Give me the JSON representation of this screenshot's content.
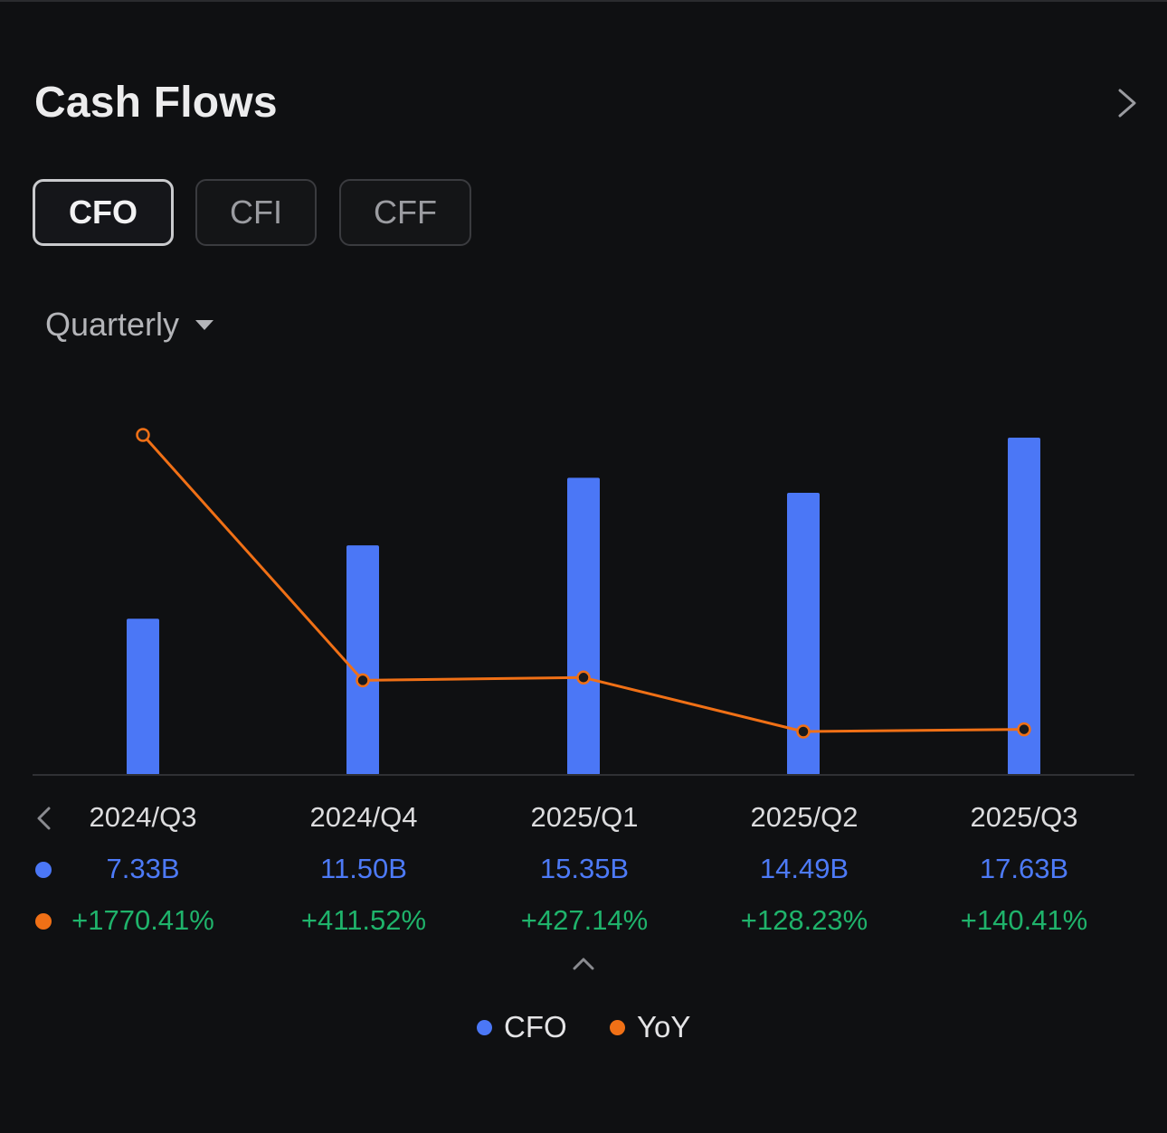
{
  "header": {
    "title": "Cash Flows",
    "more_icon": "chevron-right-icon"
  },
  "tabs": [
    {
      "label": "CFO",
      "active": true
    },
    {
      "label": "CFI",
      "active": false
    },
    {
      "label": "CFF",
      "active": false
    }
  ],
  "period_selector": {
    "label": "Quarterly",
    "icon": "caret-down-icon"
  },
  "colors": {
    "bar": "#4b77f6",
    "line": "#f07016",
    "positive": "#1fb36b",
    "value_text": "#4d7af7"
  },
  "chart_data": {
    "type": "bar",
    "categories": [
      "2024/Q3",
      "2024/Q4",
      "2025/Q1",
      "2025/Q2",
      "2025/Q3"
    ],
    "series": [
      {
        "name": "CFO",
        "type": "bar",
        "values": [
          7.33,
          11.5,
          15.35,
          14.49,
          17.63
        ],
        "unit": "B",
        "labels": [
          "7.33B",
          "11.50B",
          "15.35B",
          "14.49B",
          "17.63B"
        ]
      },
      {
        "name": "YoY",
        "type": "line",
        "values": [
          1770.41,
          411.52,
          427.14,
          128.23,
          140.41
        ],
        "unit": "%",
        "labels": [
          "+1770.41%",
          "+411.52%",
          "+427.14%",
          "+128.23%",
          "+140.41%"
        ]
      }
    ],
    "legend_placement": "bottom-center",
    "grid": false
  },
  "table_controls": {
    "prev_icon": "chevron-left-icon",
    "collapse_icon": "chevron-up-icon"
  },
  "legend": [
    {
      "label": "CFO",
      "color": "#4b77f6"
    },
    {
      "label": "YoY",
      "color": "#f07016"
    }
  ]
}
